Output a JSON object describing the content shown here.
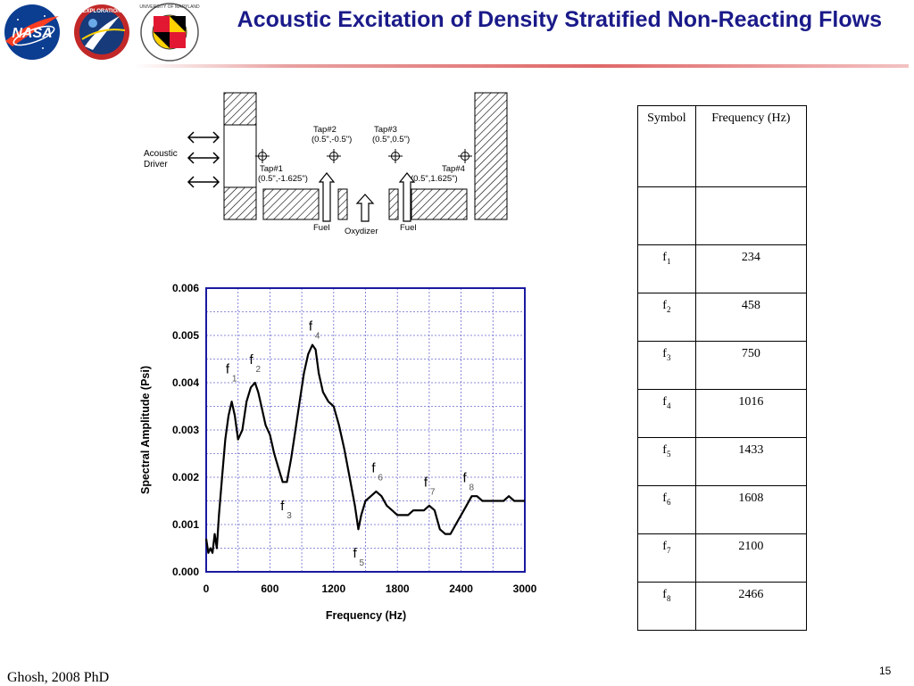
{
  "slide": {
    "title": "Acoustic Excitation of Density Stratified Non-Reacting Flows",
    "footer": "Ghosh, 2008 PhD",
    "page_number": "15",
    "logos": [
      {
        "name": "nasa-logo",
        "text": "NASA"
      },
      {
        "name": "exploration-logo",
        "text": "EXPLORATION"
      },
      {
        "name": "university-of-maryland-seal",
        "text": "UNIVERSITY OF MARYLAND"
      }
    ]
  },
  "diagram": {
    "acoustic_driver": "Acoustic\nDriver",
    "taps": [
      {
        "name": "Tap#1",
        "pos": "(0.5\",-1.625\")"
      },
      {
        "name": "Tap#2",
        "pos": "(0.5\",-0.5\")"
      },
      {
        "name": "Tap#3",
        "pos": "(0.5\",0.5\")"
      },
      {
        "name": "Tap#4",
        "pos": "(0.5\",1.625\")"
      }
    ],
    "fuel_left": "Fuel",
    "oxydizer": "Oxydizer",
    "fuel_right": "Fuel"
  },
  "chart_data": {
    "type": "line",
    "xlabel": "Frequency (Hz)",
    "ylabel": "Spectral Amplitude (Psi)",
    "xlim": [
      0,
      3000
    ],
    "ylim": [
      0,
      0.006
    ],
    "x_ticks": [
      0,
      600,
      1200,
      1800,
      2400,
      3000
    ],
    "y_ticks": [
      "0.000",
      "0.001",
      "0.002",
      "0.003",
      "0.004",
      "0.005",
      "0.006"
    ],
    "grid": true,
    "series": [
      {
        "x": [
          0,
          20,
          40,
          60,
          80,
          100,
          120,
          150,
          180,
          210,
          240,
          270,
          300,
          340,
          380,
          420,
          460,
          490,
          520,
          560,
          600,
          640,
          680,
          720,
          760,
          800,
          840,
          880,
          920,
          960,
          1000,
          1030,
          1060,
          1100,
          1150,
          1200,
          1250,
          1300,
          1350,
          1400,
          1433,
          1460,
          1500,
          1550,
          1600,
          1650,
          1700,
          1750,
          1800,
          1850,
          1900,
          1950,
          2000,
          2050,
          2100,
          2150,
          2200,
          2250,
          2300,
          2350,
          2400,
          2450,
          2500,
          2550,
          2600,
          2650,
          2700,
          2750,
          2800,
          2850,
          2900,
          2950,
          3000
        ],
        "y": [
          0.0007,
          0.0004,
          0.0005,
          0.0004,
          0.0008,
          0.0005,
          0.0012,
          0.002,
          0.0028,
          0.0033,
          0.0036,
          0.0033,
          0.0028,
          0.003,
          0.0036,
          0.0039,
          0.004,
          0.0038,
          0.0035,
          0.0031,
          0.0029,
          0.0025,
          0.0022,
          0.0019,
          0.0019,
          0.0024,
          0.003,
          0.0036,
          0.0042,
          0.0046,
          0.0048,
          0.0047,
          0.0042,
          0.0038,
          0.0036,
          0.0035,
          0.0031,
          0.0026,
          0.002,
          0.0014,
          0.0009,
          0.0012,
          0.0015,
          0.0016,
          0.0017,
          0.0016,
          0.0014,
          0.0013,
          0.0012,
          0.0012,
          0.0012,
          0.0013,
          0.0013,
          0.0013,
          0.0014,
          0.0013,
          0.0009,
          0.0008,
          0.0008,
          0.001,
          0.0012,
          0.0014,
          0.0016,
          0.0016,
          0.0015,
          0.0015,
          0.0015,
          0.0015,
          0.0015,
          0.0016,
          0.0015,
          0.0015,
          0.0015
        ]
      }
    ],
    "annotations": [
      {
        "label": "f",
        "sub": "1",
        "x": 234,
        "y": 0.0042
      },
      {
        "label": "f",
        "sub": "2",
        "x": 458,
        "y": 0.0044
      },
      {
        "label": "f",
        "sub": "3",
        "x": 750,
        "y": 0.0013
      },
      {
        "label": "f",
        "sub": "4",
        "x": 1016,
        "y": 0.0051
      },
      {
        "label": "f",
        "sub": "5",
        "x": 1433,
        "y": 0.0003
      },
      {
        "label": "f",
        "sub": "6",
        "x": 1608,
        "y": 0.0021
      },
      {
        "label": "f",
        "sub": "7",
        "x": 2100,
        "y": 0.0018
      },
      {
        "label": "f",
        "sub": "8",
        "x": 2466,
        "y": 0.0019
      }
    ]
  },
  "table": {
    "headers": [
      "Symbol",
      "Frequency (Hz)"
    ],
    "rows": [
      {
        "symbol": "f",
        "sub": "1",
        "freq": "234"
      },
      {
        "symbol": "f",
        "sub": "2",
        "freq": "458"
      },
      {
        "symbol": "f",
        "sub": "3",
        "freq": "750"
      },
      {
        "symbol": "f",
        "sub": "4",
        "freq": "1016"
      },
      {
        "symbol": "f",
        "sub": "5",
        "freq": "1433"
      },
      {
        "symbol": "f",
        "sub": "6",
        "freq": "1608"
      },
      {
        "symbol": "f",
        "sub": "7",
        "freq": "2100"
      },
      {
        "symbol": "f",
        "sub": "8",
        "freq": "2466"
      }
    ]
  },
  "colors": {
    "title": "#1a1a8a",
    "axis": "#1a1aa0",
    "grid": "#6a6ad0",
    "curve": "#000000",
    "nasa_blue": "#0b3d91",
    "nasa_red": "#fc3d21",
    "maryland_red": "#e21833",
    "maryland_gold": "#ffd200"
  }
}
